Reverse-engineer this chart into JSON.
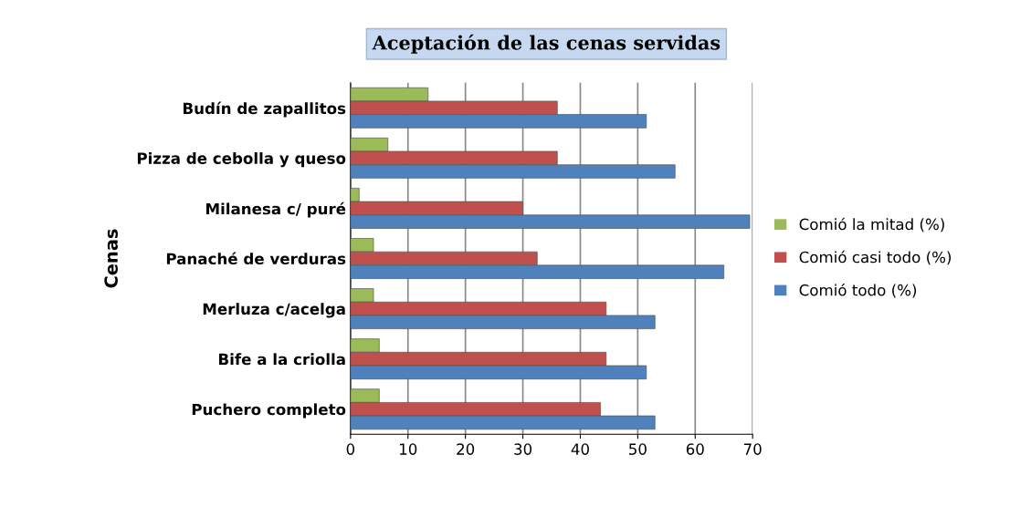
{
  "chart_data": {
    "type": "bar",
    "orientation": "horizontal",
    "title": "Aceptación de las cenas servidas",
    "ylabel": "Cenas",
    "categories": [
      "Budín de zapallitos",
      "Pizza de cebolla y queso",
      "Milanesa c/ puré",
      "Panaché de verduras",
      "Merluza c/acelga",
      "Bife a la criolla",
      "Puchero completo"
    ],
    "series": [
      {
        "name": "Comió la mitad (%)",
        "color": "#9bbb59",
        "values": [
          13.5,
          6.5,
          1.5,
          4,
          4,
          5,
          5
        ]
      },
      {
        "name": "Comió casi todo (%)",
        "color": "#c0504d",
        "values": [
          36,
          36,
          30,
          32.5,
          44.5,
          44.5,
          43.5
        ]
      },
      {
        "name": "Comió todo (%)",
        "color": "#4f81bd",
        "values": [
          51.5,
          56.5,
          69.5,
          65,
          53,
          51.5,
          53
        ]
      }
    ],
    "xlim": [
      0,
      70
    ],
    "xticks": [
      0,
      10,
      20,
      30,
      40,
      50,
      60,
      70
    ],
    "grid": "x",
    "legend": "right"
  }
}
